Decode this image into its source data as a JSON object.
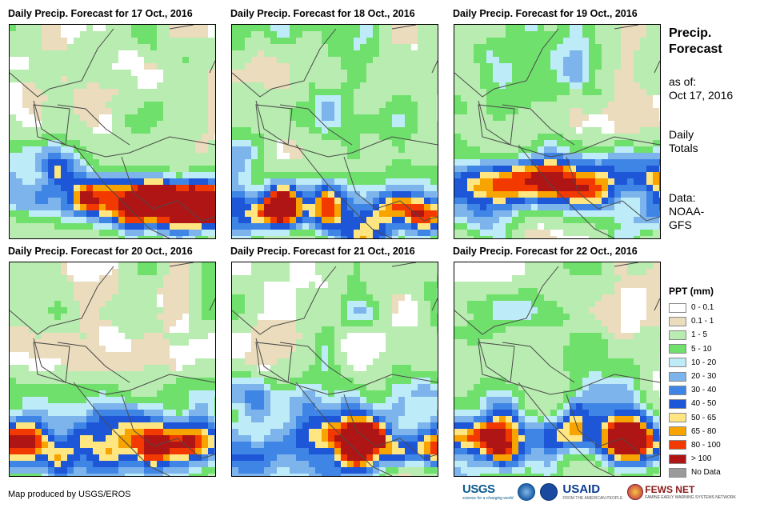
{
  "panels": [
    {
      "title": "Daily Precip. Forecast for 17 Oct., 2016",
      "seed": 17
    },
    {
      "title": "Daily Precip. Forecast for 18 Oct., 2016",
      "seed": 18
    },
    {
      "title": "Daily Precip. Forecast for 19 Oct., 2016",
      "seed": 19
    },
    {
      "title": "Daily Precip. Forecast for 20 Oct., 2016",
      "seed": 20
    },
    {
      "title": "Daily Precip. Forecast for 21 Oct., 2016",
      "seed": 21
    },
    {
      "title": "Daily Precip. Forecast for 22 Oct., 2016",
      "seed": 22
    }
  ],
  "side": {
    "title_line1": "Precip.",
    "title_line2": "Forecast",
    "asof_label": "as of:",
    "asof_date": "Oct 17, 2016",
    "totals_line1": "Daily",
    "totals_line2": "Totals",
    "source_label": "Data:",
    "source_line1": "NOAA-",
    "source_line2": "GFS"
  },
  "legend": {
    "title": "PPT (mm)",
    "items": [
      {
        "label": "0 - 0.1",
        "color": "#ffffff"
      },
      {
        "label": "0.1 - 1",
        "color": "#eadcbc"
      },
      {
        "label": "1 - 5",
        "color": "#b9ecb0"
      },
      {
        "label": "5 - 10",
        "color": "#6fe06b"
      },
      {
        "label": "10 - 20",
        "color": "#bdebf7"
      },
      {
        "label": "20 - 30",
        "color": "#7db4ec"
      },
      {
        "label": "30 - 40",
        "color": "#3f85e6"
      },
      {
        "label": "40 - 50",
        "color": "#1e56d8"
      },
      {
        "label": "50 - 65",
        "color": "#ffe680"
      },
      {
        "label": "65 - 80",
        "color": "#f7a300"
      },
      {
        "label": "80 - 100",
        "color": "#f23a00"
      },
      {
        "label": "> 100",
        "color": "#b01515"
      },
      {
        "label": "No Data",
        "color": "#9a9a9a"
      }
    ]
  },
  "footer": {
    "credit": "Map produced by USGS/EROS",
    "logo_usgs": "USGS",
    "logo_usgs_tag": "science for a changing world",
    "logo_usaid": "USAID",
    "logo_usaid_tag": "FROM THE AMERICAN PEOPLE",
    "logo_fews": "FEWS NET",
    "logo_fews_tag": "FAMINE EARLY WARNING SYSTEMS NETWORK"
  }
}
